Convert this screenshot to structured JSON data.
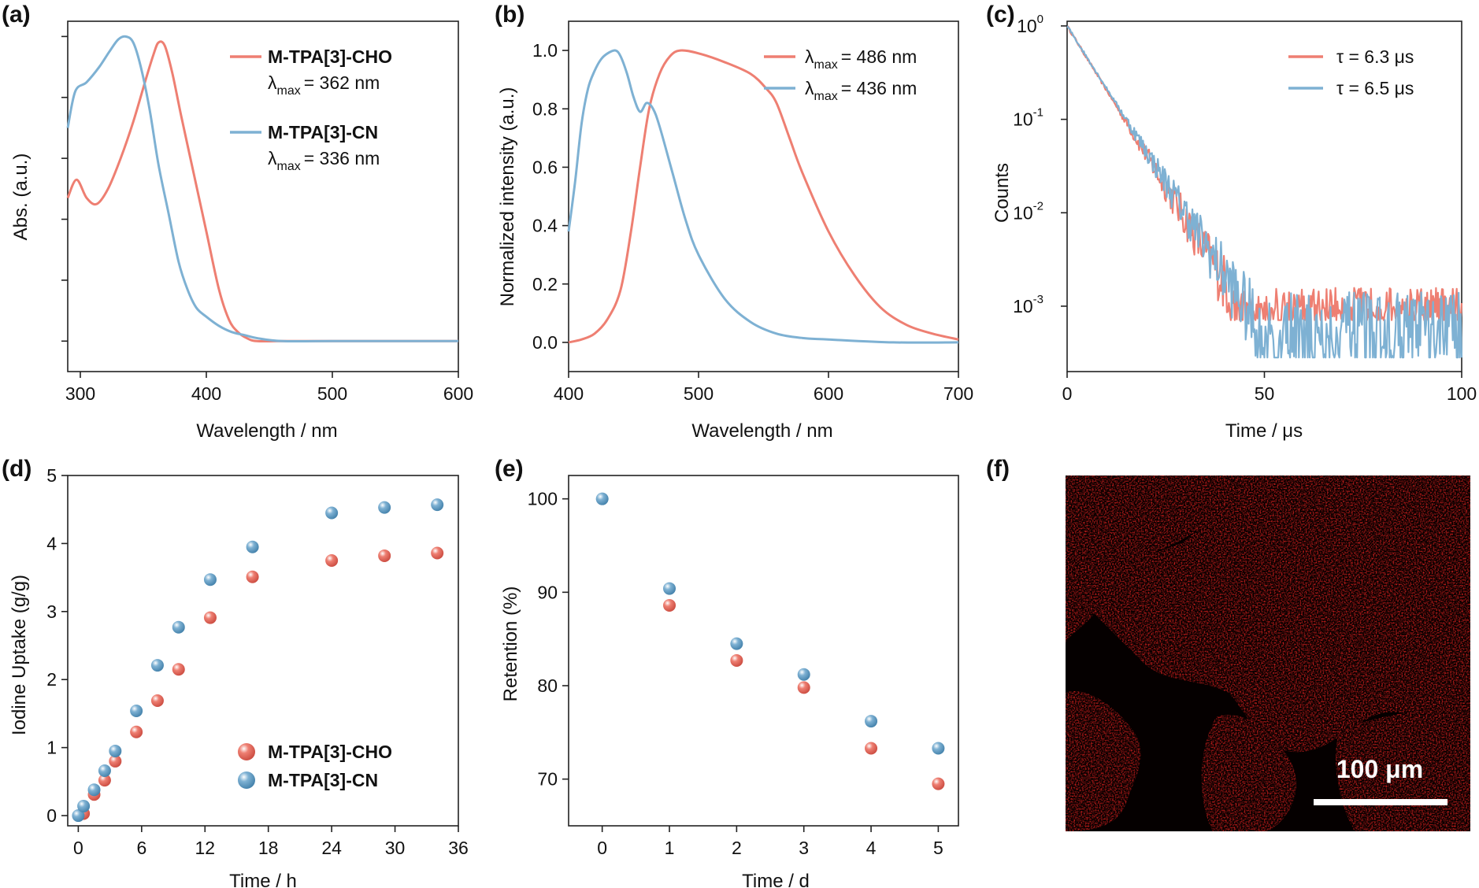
{
  "colors": {
    "cho": "#EE7F72",
    "cn": "#7EB1D3",
    "sem_red": "#E0211F"
  },
  "chart_data": [
    {
      "id": "a",
      "type": "line",
      "panel_label": "(a)",
      "xlabel": "Wavelength / nm",
      "ylabel": "Abs. (a.u.)",
      "xlim": [
        290,
        600
      ],
      "ylim": [
        -0.1,
        1.05
      ],
      "xticks": [
        300,
        400,
        500,
        600
      ],
      "yticks_unlabeled": 6,
      "series": [
        {
          "name": "M-TPA[3]-CHO",
          "lambda_text": "= 362 nm",
          "x": [
            290,
            297,
            305,
            313,
            322,
            332,
            342,
            352,
            358,
            362,
            367,
            373,
            380,
            390,
            400,
            410,
            418,
            425,
            432,
            440,
            460,
            500,
            600
          ],
          "y": [
            0.47,
            0.53,
            0.47,
            0.45,
            0.5,
            0.6,
            0.72,
            0.86,
            0.94,
            0.98,
            0.97,
            0.88,
            0.74,
            0.55,
            0.36,
            0.17,
            0.07,
            0.03,
            0.01,
            0.0,
            0.0,
            0.0,
            0.0
          ]
        },
        {
          "name": "M-TPA[3]-CN",
          "lambda_text": "= 336 nm",
          "x": [
            290,
            296,
            305,
            315,
            323,
            330,
            336,
            342,
            348,
            355,
            362,
            370,
            378,
            385,
            392,
            400,
            410,
            420,
            430,
            440,
            460,
            500,
            600
          ],
          "y": [
            0.7,
            0.82,
            0.85,
            0.9,
            0.95,
            0.99,
            1.0,
            0.98,
            0.9,
            0.76,
            0.58,
            0.42,
            0.26,
            0.17,
            0.11,
            0.08,
            0.05,
            0.03,
            0.02,
            0.01,
            0.0,
            0.0,
            0.0
          ]
        }
      ],
      "legend_lambda": "λ",
      "legend_sub": "max"
    },
    {
      "id": "b",
      "type": "line",
      "panel_label": "(b)",
      "xlabel": "Wavelength / nm",
      "ylabel": "Normalized intensity (a.u.)",
      "xlim": [
        400,
        700
      ],
      "ylim": [
        -0.1,
        1.1
      ],
      "xticks": [
        400,
        500,
        600,
        700
      ],
      "yticks": [
        0.0,
        0.2,
        0.4,
        0.6,
        0.8,
        1.0
      ],
      "series": [
        {
          "name": "λmax = 486 nm",
          "lambda_text": "= 486 nm",
          "x": [
            400,
            410,
            420,
            430,
            440,
            448,
            455,
            462,
            470,
            478,
            486,
            500,
            520,
            540,
            552,
            560,
            570,
            580,
            600,
            620,
            640,
            660,
            680,
            700
          ],
          "y": [
            0.0,
            0.01,
            0.03,
            0.08,
            0.18,
            0.38,
            0.6,
            0.8,
            0.92,
            0.98,
            1.0,
            0.99,
            0.96,
            0.92,
            0.87,
            0.82,
            0.7,
            0.58,
            0.38,
            0.23,
            0.12,
            0.06,
            0.03,
            0.01
          ]
        },
        {
          "name": "λmax = 436 nm",
          "lambda_text": "= 436 nm",
          "x": [
            400,
            405,
            410,
            415,
            420,
            425,
            430,
            436,
            440,
            445,
            450,
            455,
            460,
            465,
            470,
            480,
            490,
            500,
            520,
            540,
            560,
            580,
            600,
            650,
            700
          ],
          "y": [
            0.38,
            0.55,
            0.75,
            0.87,
            0.93,
            0.97,
            0.99,
            1.0,
            0.98,
            0.92,
            0.84,
            0.79,
            0.82,
            0.8,
            0.74,
            0.58,
            0.42,
            0.3,
            0.15,
            0.07,
            0.03,
            0.015,
            0.01,
            0.0,
            0.0
          ]
        }
      ],
      "legend_lambda": "λ",
      "legend_sub": "max"
    },
    {
      "id": "c",
      "type": "line",
      "panel_label": "(c)",
      "xlabel": "Time / μs",
      "ylabel": "Counts",
      "xlim": [
        0,
        100
      ],
      "ylim_log10": [
        -3.7,
        0.05
      ],
      "yscale": "log",
      "xticks": [
        0,
        50,
        100
      ],
      "yticks": [
        {
          "base": "10",
          "exp": "0",
          "v": 0
        },
        {
          "base": "10",
          "exp": "-1",
          "v": -1
        },
        {
          "base": "10",
          "exp": "-2",
          "v": -2
        },
        {
          "base": "10",
          "exp": "-3",
          "v": -3
        }
      ],
      "series": [
        {
          "name": "τ = 6.3 μs",
          "tau_us": 6.3,
          "floor_log10": -3.15,
          "noise_top_log10": -2.8
        },
        {
          "name": "τ = 6.5 μs",
          "tau_us": 6.5,
          "floor_log10": -3.55,
          "noise_top_log10": -2.85
        }
      ]
    },
    {
      "id": "d",
      "type": "scatter",
      "panel_label": "(d)",
      "xlabel": "Time / h",
      "ylabel": "Iodine Uptake (g/g)",
      "xlim": [
        -1,
        36
      ],
      "ylim": [
        -0.15,
        5
      ],
      "xticks": [
        0,
        6,
        12,
        18,
        24,
        30,
        36
      ],
      "yticks": [
        0,
        1,
        2,
        3,
        4,
        5
      ],
      "series": [
        {
          "name": "M-TPA[3]-CHO",
          "x": [
            0.5,
            1.5,
            2.5,
            3.5,
            5.5,
            7.5,
            9.5,
            12.5,
            16.5,
            24,
            29,
            34
          ],
          "y": [
            0.03,
            0.31,
            0.52,
            0.8,
            1.23,
            1.69,
            2.15,
            2.91,
            3.51,
            3.75,
            3.82,
            3.86
          ]
        },
        {
          "name": "M-TPA[3]-CN",
          "x": [
            0,
            0.5,
            1.5,
            2.5,
            3.5,
            5.5,
            7.5,
            9.5,
            12.5,
            16.5,
            24,
            29,
            34
          ],
          "y": [
            0.0,
            0.14,
            0.38,
            0.66,
            0.95,
            1.54,
            2.21,
            2.77,
            3.47,
            3.95,
            4.45,
            4.53,
            4.57
          ]
        }
      ]
    },
    {
      "id": "e",
      "type": "scatter",
      "panel_label": "(e)",
      "xlabel": "Time / d",
      "ylabel": "Retention (%)",
      "xlim": [
        -0.5,
        5.3
      ],
      "ylim": [
        65,
        102.5
      ],
      "xticks": [
        0,
        1,
        2,
        3,
        4,
        5
      ],
      "yticks": [
        70,
        80,
        90,
        100
      ],
      "series": [
        {
          "name": "M-TPA[3]-CHO",
          "x": [
            1,
            2,
            3,
            4,
            5
          ],
          "y": [
            88.6,
            82.7,
            79.8,
            73.3,
            69.5
          ]
        },
        {
          "name": "M-TPA[3]-CN",
          "x": [
            0,
            1,
            2,
            3,
            4,
            5
          ],
          "y": [
            100,
            90.4,
            84.5,
            81.2,
            76.2,
            73.3
          ]
        }
      ]
    }
  ],
  "panel_f": {
    "panel_label": "(f)",
    "scale_bar_text": "100 μm"
  }
}
